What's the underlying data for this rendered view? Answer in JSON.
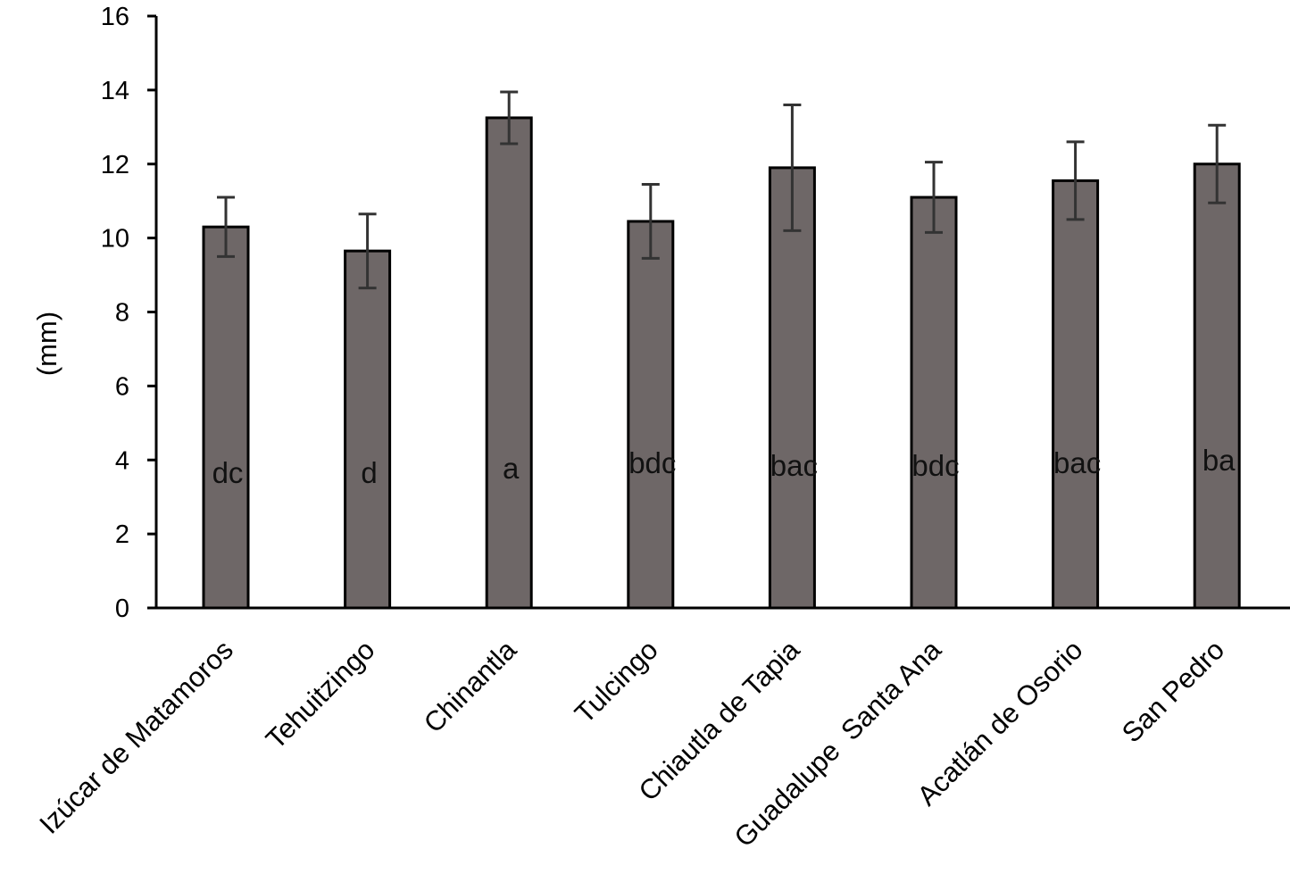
{
  "chart_data": {
    "type": "bar",
    "title": "",
    "xlabel": "",
    "ylabel": "(mm)",
    "ylim": [
      0,
      16
    ],
    "yticks": [
      "0",
      "2",
      "4",
      "6",
      "8",
      "10",
      "12",
      "14",
      "16"
    ],
    "grid": false,
    "categories": [
      "Izúcar de Matamoros",
      "Tehuitzingo",
      "Chinantla",
      "Tulcingo",
      "Chiautla de Tapia",
      "Guadalupe  Santa Ana",
      "Acatlán de Osorio",
      "San Pedro"
    ],
    "values": [
      10.3,
      9.65,
      13.25,
      10.45,
      11.9,
      11.1,
      11.55,
      12.0
    ],
    "error": [
      0.8,
      1.0,
      0.7,
      1.0,
      1.7,
      0.95,
      1.05,
      1.05
    ],
    "significance_letters": [
      "dc",
      "d",
      "a",
      "bdc",
      "bac",
      "bdc",
      "bac",
      "ba"
    ],
    "bar_color": "#6e6767",
    "bar_edge_color": "#000000",
    "error_color": "#333333"
  }
}
